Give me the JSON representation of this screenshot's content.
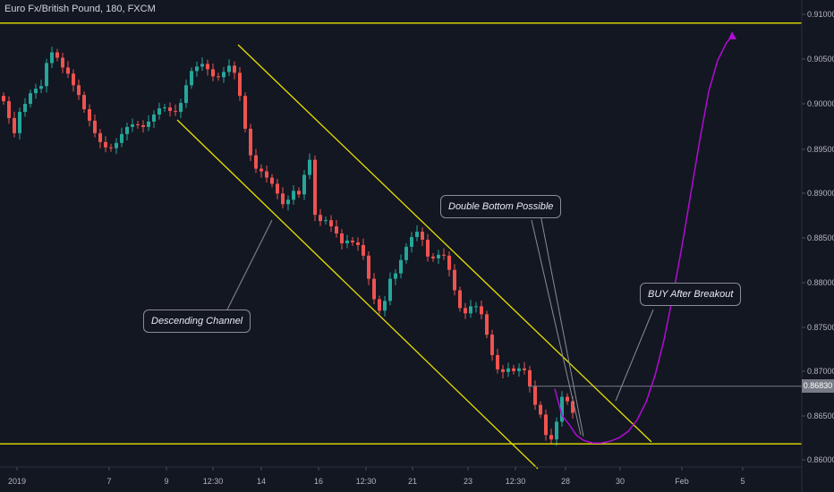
{
  "title": "Euro Fx/British Pound, 180, FXCM",
  "last_price_label": "0.86830",
  "annotations": {
    "descending_channel": "Descending Channel",
    "double_bottom": "Double Bottom Possible",
    "buy_after_breakout": "BUY After Breakout"
  },
  "colors": {
    "background": "#131722",
    "bull": "#26a69a",
    "bear": "#ef5350",
    "channel": "#e8e000",
    "projection": "#b10cd4",
    "axis_text": "#b2b5be"
  },
  "chart_data": {
    "type": "candlestick",
    "title": "Euro Fx/British Pound, 180, FXCM",
    "x_ticks": [
      "2019",
      "7",
      "9",
      "12:30",
      "14",
      "16",
      "12:30",
      "21",
      "23",
      "12:30",
      "28",
      "30",
      "Feb",
      "5"
    ],
    "y_ticks": [
      "0.91000",
      "0.90500",
      "0.90000",
      "0.89500",
      "0.89000",
      "0.88500",
      "0.88000",
      "0.87500",
      "0.87000",
      "0.86500",
      "0.86000"
    ],
    "ylim": [
      0.8592,
      0.9118
    ],
    "last_price": 0.8683,
    "horizontal_levels": [
      0.9092,
      0.8618
    ],
    "close_path": [
      0.9004,
      0.8985,
      0.8968,
      0.8992,
      0.9001,
      0.9013,
      0.9018,
      0.9021,
      0.9047,
      0.9059,
      0.9053,
      0.9042,
      0.9035,
      0.9022,
      0.9011,
      0.8995,
      0.8982,
      0.8968,
      0.8958,
      0.8952,
      0.8951,
      0.8957,
      0.8967,
      0.8975,
      0.8978,
      0.8977,
      0.8975,
      0.8981,
      0.8989,
      0.8996,
      0.8997,
      0.8993,
      0.8992,
      0.9002,
      0.9022,
      0.9038,
      0.9043,
      0.9046,
      0.904,
      0.9032,
      0.9031,
      0.9037,
      0.9044,
      0.9036,
      0.901,
      0.8973,
      0.8943,
      0.8928,
      0.8925,
      0.8918,
      0.8911,
      0.89,
      0.8888,
      0.8893,
      0.8903,
      0.8899,
      0.8921,
      0.8938,
      0.8876,
      0.8869,
      0.887,
      0.8863,
      0.8855,
      0.8844,
      0.8847,
      0.8845,
      0.8842,
      0.883,
      0.8804,
      0.8781,
      0.8768,
      0.8779,
      0.8804,
      0.881,
      0.8825,
      0.884,
      0.8851,
      0.8857,
      0.8848,
      0.8829,
      0.8827,
      0.8831,
      0.883,
      0.8814,
      0.8791,
      0.8771,
      0.8765,
      0.8773,
      0.8773,
      0.8764,
      0.8741,
      0.8718,
      0.8702,
      0.8699,
      0.8703,
      0.87,
      0.8703,
      0.8701,
      0.8683,
      0.8662,
      0.8651,
      0.8628,
      0.8623,
      0.8643,
      0.8671,
      0.8666,
      0.8653
    ],
    "projection_path": [
      [
        620,
        0.868
      ],
      [
        624,
        0.8665
      ],
      [
        628,
        0.865
      ],
      [
        636,
        0.864
      ],
      [
        644,
        0.8628
      ],
      [
        652,
        0.8622
      ],
      [
        662,
        0.8619
      ],
      [
        672,
        0.8619
      ],
      [
        682,
        0.8621
      ],
      [
        692,
        0.8625
      ],
      [
        702,
        0.8632
      ],
      [
        712,
        0.8645
      ],
      [
        722,
        0.8665
      ],
      [
        732,
        0.8695
      ],
      [
        742,
        0.8735
      ],
      [
        752,
        0.8785
      ],
      [
        762,
        0.884
      ],
      [
        772,
        0.89
      ],
      [
        782,
        0.896
      ],
      [
        792,
        0.9015
      ],
      [
        802,
        0.905
      ],
      [
        812,
        0.907
      ],
      [
        818,
        0.9077
      ]
    ]
  }
}
